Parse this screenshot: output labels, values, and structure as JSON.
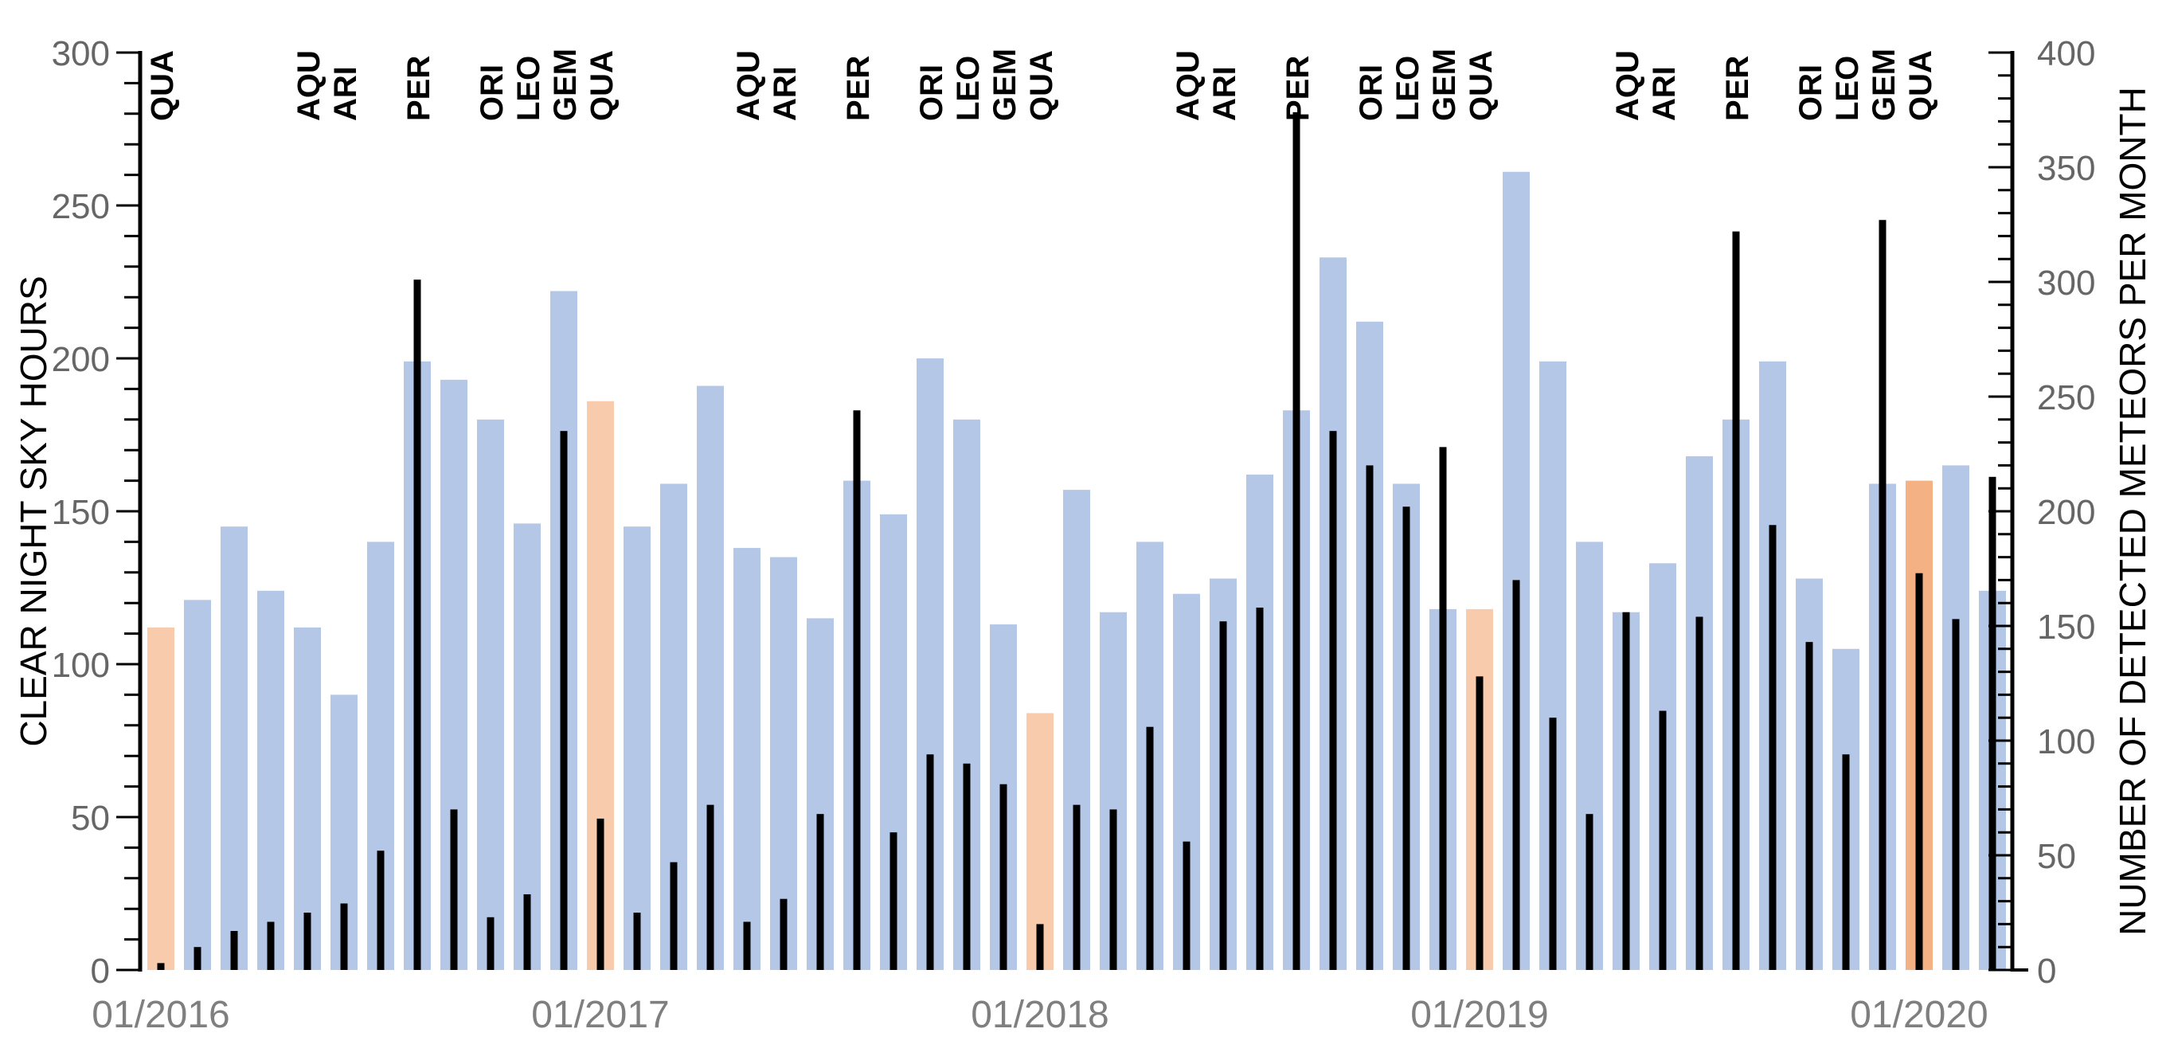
{
  "chart_data": {
    "type": "bar",
    "title": "",
    "left_axis": {
      "label": "CLEAR NIGHT SKY HOURS",
      "min": 0,
      "max": 300,
      "major_tick": 50,
      "minor_tick": 10,
      "tick_labels": [
        "0",
        "50",
        "100",
        "150",
        "200",
        "250",
        "300"
      ]
    },
    "right_axis": {
      "label": "NUMBER OF DETECTED METEORS PER MONTH",
      "min": 0,
      "max": 400,
      "major_tick": 50,
      "minor_tick": 10,
      "tick_labels": [
        "0",
        "50",
        "100",
        "150",
        "200",
        "250",
        "300",
        "350",
        "400"
      ]
    },
    "x_axis": {
      "ticks": [
        {
          "month_index": 0,
          "label": "01/2016"
        },
        {
          "month_index": 12,
          "label": "01/2017"
        },
        {
          "month_index": 24,
          "label": "01/2018"
        },
        {
          "month_index": 36,
          "label": "01/2019"
        },
        {
          "month_index": 48,
          "label": "01/2020"
        }
      ]
    },
    "legend": {
      "position": "none"
    },
    "grid": false,
    "colors": {
      "blue": "#B4C7E7",
      "peach": "#F8CBAD",
      "orange": "#F4B183",
      "meteor": "#000000",
      "axis_line": "#000000",
      "tick_text": "#666666",
      "year_text": "#7f7f7f"
    },
    "series": [
      {
        "name": "clear night sky hours",
        "axis": "left",
        "style": "wide-column"
      },
      {
        "name": "detected meteors per month",
        "axis": "right",
        "style": "thin-black-column"
      }
    ],
    "months": [
      {
        "label": "01/2016",
        "hours": 112,
        "meteors": 3,
        "fill": "peach"
      },
      {
        "label": "02/2016",
        "hours": 121,
        "meteors": 10,
        "fill": "blue"
      },
      {
        "label": "03/2016",
        "hours": 145,
        "meteors": 17,
        "fill": "blue"
      },
      {
        "label": "04/2016",
        "hours": 124,
        "meteors": 21,
        "fill": "blue"
      },
      {
        "label": "05/2016",
        "hours": 112,
        "meteors": 25,
        "fill": "blue"
      },
      {
        "label": "06/2016",
        "hours": 90,
        "meteors": 29,
        "fill": "blue"
      },
      {
        "label": "07/2016",
        "hours": 140,
        "meteors": 52,
        "fill": "blue"
      },
      {
        "label": "08/2016",
        "hours": 199,
        "meteors": 301,
        "fill": "blue"
      },
      {
        "label": "09/2016",
        "hours": 193,
        "meteors": 70,
        "fill": "blue"
      },
      {
        "label": "10/2016",
        "hours": 180,
        "meteors": 23,
        "fill": "blue"
      },
      {
        "label": "11/2016",
        "hours": 146,
        "meteors": 33,
        "fill": "blue"
      },
      {
        "label": "12/2016",
        "hours": 222,
        "meteors": 235,
        "fill": "blue"
      },
      {
        "label": "01/2017",
        "hours": 186,
        "meteors": 66,
        "fill": "peach"
      },
      {
        "label": "02/2017",
        "hours": 145,
        "meteors": 25,
        "fill": "blue"
      },
      {
        "label": "03/2017",
        "hours": 159,
        "meteors": 47,
        "fill": "blue"
      },
      {
        "label": "04/2017",
        "hours": 191,
        "meteors": 72,
        "fill": "blue"
      },
      {
        "label": "05/2017",
        "hours": 138,
        "meteors": 21,
        "fill": "blue"
      },
      {
        "label": "06/2017",
        "hours": 135,
        "meteors": 31,
        "fill": "blue"
      },
      {
        "label": "07/2017",
        "hours": 115,
        "meteors": 68,
        "fill": "blue"
      },
      {
        "label": "08/2017",
        "hours": 160,
        "meteors": 244,
        "fill": "blue"
      },
      {
        "label": "09/2017",
        "hours": 149,
        "meteors": 60,
        "fill": "blue"
      },
      {
        "label": "10/2017",
        "hours": 200,
        "meteors": 94,
        "fill": "blue"
      },
      {
        "label": "11/2017",
        "hours": 180,
        "meteors": 90,
        "fill": "blue"
      },
      {
        "label": "12/2017",
        "hours": 113,
        "meteors": 81,
        "fill": "blue"
      },
      {
        "label": "01/2018",
        "hours": 84,
        "meteors": 20,
        "fill": "peach"
      },
      {
        "label": "02/2018",
        "hours": 157,
        "meteors": 72,
        "fill": "blue"
      },
      {
        "label": "03/2018",
        "hours": 117,
        "meteors": 70,
        "fill": "blue"
      },
      {
        "label": "04/2018",
        "hours": 140,
        "meteors": 106,
        "fill": "blue"
      },
      {
        "label": "05/2018",
        "hours": 123,
        "meteors": 56,
        "fill": "blue"
      },
      {
        "label": "06/2018",
        "hours": 128,
        "meteors": 152,
        "fill": "blue"
      },
      {
        "label": "07/2018",
        "hours": 162,
        "meteors": 158,
        "fill": "blue"
      },
      {
        "label": "08/2018",
        "hours": 183,
        "meteors": 374,
        "fill": "blue"
      },
      {
        "label": "09/2018",
        "hours": 233,
        "meteors": 235,
        "fill": "blue"
      },
      {
        "label": "10/2018",
        "hours": 212,
        "meteors": 220,
        "fill": "blue"
      },
      {
        "label": "11/2018",
        "hours": 159,
        "meteors": 202,
        "fill": "blue"
      },
      {
        "label": "12/2018",
        "hours": 118,
        "meteors": 228,
        "fill": "blue"
      },
      {
        "label": "01/2019",
        "hours": 118,
        "meteors": 128,
        "fill": "peach"
      },
      {
        "label": "02/2019",
        "hours": 261,
        "meteors": 170,
        "fill": "blue"
      },
      {
        "label": "03/2019",
        "hours": 199,
        "meteors": 110,
        "fill": "blue"
      },
      {
        "label": "04/2019",
        "hours": 140,
        "meteors": 68,
        "fill": "blue"
      },
      {
        "label": "05/2019",
        "hours": 117,
        "meteors": 156,
        "fill": "blue"
      },
      {
        "label": "06/2019",
        "hours": 133,
        "meteors": 113,
        "fill": "blue"
      },
      {
        "label": "07/2019",
        "hours": 168,
        "meteors": 154,
        "fill": "blue"
      },
      {
        "label": "08/2019",
        "hours": 180,
        "meteors": 322,
        "fill": "blue"
      },
      {
        "label": "09/2019",
        "hours": 199,
        "meteors": 194,
        "fill": "blue"
      },
      {
        "label": "10/2019",
        "hours": 128,
        "meteors": 143,
        "fill": "blue"
      },
      {
        "label": "11/2019",
        "hours": 105,
        "meteors": 94,
        "fill": "blue"
      },
      {
        "label": "12/2019",
        "hours": 159,
        "meteors": 327,
        "fill": "blue"
      },
      {
        "label": "01/2020",
        "hours": 160,
        "meteors": 173,
        "fill": "orange"
      },
      {
        "label": "02/2020",
        "hours": 165,
        "meteors": 153,
        "fill": "blue"
      },
      {
        "label": "03/2020",
        "hours": 124,
        "meteors": 215,
        "fill": "blue"
      }
    ],
    "shower_labels": [
      {
        "month_index": 0,
        "label": "QUA"
      },
      {
        "month_index": 4,
        "label": "AQU"
      },
      {
        "month_index": 5,
        "label": "ARI"
      },
      {
        "month_index": 7,
        "label": "PER"
      },
      {
        "month_index": 9,
        "label": "ORI"
      },
      {
        "month_index": 10,
        "label": "LEO"
      },
      {
        "month_index": 11,
        "label": "GEM"
      },
      {
        "month_index": 12,
        "label": "QUA"
      },
      {
        "month_index": 16,
        "label": "AQU"
      },
      {
        "month_index": 17,
        "label": "ARI"
      },
      {
        "month_index": 19,
        "label": "PER"
      },
      {
        "month_index": 21,
        "label": "ORI"
      },
      {
        "month_index": 22,
        "label": "LEO"
      },
      {
        "month_index": 23,
        "label": "GEM"
      },
      {
        "month_index": 24,
        "label": "QUA"
      },
      {
        "month_index": 28,
        "label": "AQU"
      },
      {
        "month_index": 29,
        "label": "ARI"
      },
      {
        "month_index": 31,
        "label": "PER"
      },
      {
        "month_index": 33,
        "label": "ORI"
      },
      {
        "month_index": 34,
        "label": "LEO"
      },
      {
        "month_index": 35,
        "label": "GEM"
      },
      {
        "month_index": 36,
        "label": "QUA"
      },
      {
        "month_index": 40,
        "label": "AQU"
      },
      {
        "month_index": 41,
        "label": "ARI"
      },
      {
        "month_index": 43,
        "label": "PER"
      },
      {
        "month_index": 45,
        "label": "ORI"
      },
      {
        "month_index": 46,
        "label": "LEO"
      },
      {
        "month_index": 47,
        "label": "GEM"
      },
      {
        "month_index": 48,
        "label": "QUA"
      }
    ]
  }
}
